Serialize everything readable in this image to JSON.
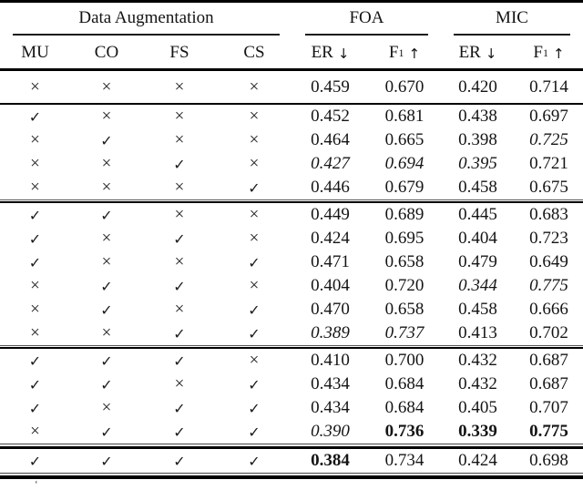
{
  "table": {
    "group_headers": [
      {
        "label": "Data Augmentation"
      },
      {
        "label": "FOA"
      },
      {
        "label": "MIC"
      }
    ],
    "col_headers": [
      {
        "text": "MU"
      },
      {
        "text": "CO"
      },
      {
        "text": "FS"
      },
      {
        "text": "CS"
      },
      {
        "text": "ER",
        "arrow": "↓"
      },
      {
        "text": "F",
        "sub": "1",
        "arrow": "↑"
      },
      {
        "text": "ER",
        "arrow": "↓"
      },
      {
        "text": "F",
        "sub": "1",
        "arrow": "↑"
      }
    ],
    "marks": {
      "check": "✓",
      "cross": "×"
    },
    "groups": [
      {
        "rows": [
          {
            "aug": [
              false,
              false,
              false,
              false
            ],
            "values": [
              {
                "v": "0.459"
              },
              {
                "v": "0.670"
              },
              {
                "v": "0.420"
              },
              {
                "v": "0.714"
              }
            ]
          }
        ]
      },
      {
        "rows": [
          {
            "aug": [
              true,
              false,
              false,
              false
            ],
            "values": [
              {
                "v": "0.452"
              },
              {
                "v": "0.681"
              },
              {
                "v": "0.438"
              },
              {
                "v": "0.697"
              }
            ]
          },
          {
            "aug": [
              false,
              true,
              false,
              false
            ],
            "values": [
              {
                "v": "0.464"
              },
              {
                "v": "0.665"
              },
              {
                "v": "0.398"
              },
              {
                "v": "0.725",
                "style": "italic"
              }
            ]
          },
          {
            "aug": [
              false,
              false,
              true,
              false
            ],
            "values": [
              {
                "v": "0.427",
                "style": "italic"
              },
              {
                "v": "0.694",
                "style": "italic"
              },
              {
                "v": "0.395",
                "style": "italic"
              },
              {
                "v": "0.721"
              }
            ]
          },
          {
            "aug": [
              false,
              false,
              false,
              true
            ],
            "values": [
              {
                "v": "0.446"
              },
              {
                "v": "0.679"
              },
              {
                "v": "0.458"
              },
              {
                "v": "0.675"
              }
            ]
          }
        ]
      },
      {
        "rows": [
          {
            "aug": [
              true,
              true,
              false,
              false
            ],
            "values": [
              {
                "v": "0.449"
              },
              {
                "v": "0.689"
              },
              {
                "v": "0.445"
              },
              {
                "v": "0.683"
              }
            ]
          },
          {
            "aug": [
              true,
              false,
              true,
              false
            ],
            "values": [
              {
                "v": "0.424"
              },
              {
                "v": "0.695"
              },
              {
                "v": "0.404"
              },
              {
                "v": "0.723"
              }
            ]
          },
          {
            "aug": [
              true,
              false,
              false,
              true
            ],
            "values": [
              {
                "v": "0.471"
              },
              {
                "v": "0.658"
              },
              {
                "v": "0.479"
              },
              {
                "v": "0.649"
              }
            ]
          },
          {
            "aug": [
              false,
              true,
              true,
              false
            ],
            "values": [
              {
                "v": "0.404"
              },
              {
                "v": "0.720"
              },
              {
                "v": "0.344",
                "style": "italic"
              },
              {
                "v": "0.775",
                "style": "italic"
              }
            ]
          },
          {
            "aug": [
              false,
              true,
              false,
              true
            ],
            "values": [
              {
                "v": "0.470"
              },
              {
                "v": "0.658"
              },
              {
                "v": "0.458"
              },
              {
                "v": "0.666"
              }
            ]
          },
          {
            "aug": [
              false,
              false,
              true,
              true
            ],
            "values": [
              {
                "v": "0.389",
                "style": "italic"
              },
              {
                "v": "0.737",
                "style": "italic"
              },
              {
                "v": "0.413"
              },
              {
                "v": "0.702"
              }
            ]
          }
        ]
      },
      {
        "rows": [
          {
            "aug": [
              true,
              true,
              true,
              false
            ],
            "values": [
              {
                "v": "0.410"
              },
              {
                "v": "0.700"
              },
              {
                "v": "0.432"
              },
              {
                "v": "0.687"
              }
            ]
          },
          {
            "aug": [
              true,
              true,
              false,
              true
            ],
            "values": [
              {
                "v": "0.434"
              },
              {
                "v": "0.684"
              },
              {
                "v": "0.432"
              },
              {
                "v": "0.687"
              }
            ]
          },
          {
            "aug": [
              true,
              false,
              true,
              true
            ],
            "values": [
              {
                "v": "0.434"
              },
              {
                "v": "0.684"
              },
              {
                "v": "0.405"
              },
              {
                "v": "0.707"
              }
            ]
          },
          {
            "aug": [
              false,
              true,
              true,
              true
            ],
            "values": [
              {
                "v": "0.390",
                "style": "italic"
              },
              {
                "v": "0.736",
                "style": "bold"
              },
              {
                "v": "0.339",
                "style": "bold"
              },
              {
                "v": "0.775",
                "style": "bold"
              }
            ]
          }
        ]
      },
      {
        "rows": [
          {
            "aug": [
              true,
              true,
              true,
              true
            ],
            "values": [
              {
                "v": "0.384",
                "style": "bold"
              },
              {
                "v": "0.734"
              },
              {
                "v": "0.424"
              },
              {
                "v": "0.698"
              }
            ]
          }
        ]
      }
    ],
    "footnote_mark": "‘"
  }
}
